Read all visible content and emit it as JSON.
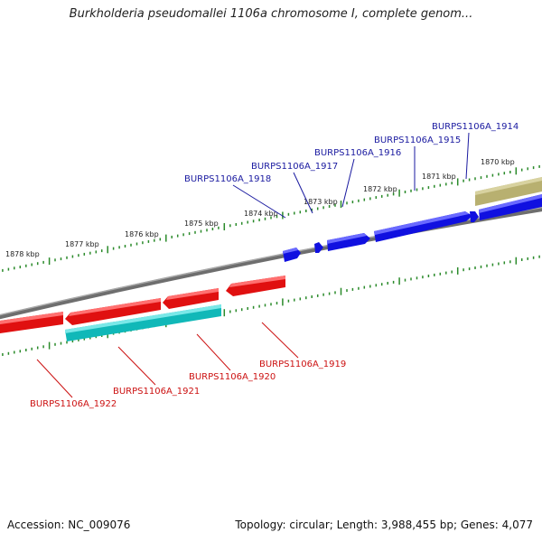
{
  "title": "Burkholderia pseudomallei 1106a chromosome I, complete genom...",
  "accession_text": "Accession: NC_009076",
  "summary_text": "Topology: circular; Length: 3,988,455 bp; Genes: 4,077",
  "colors": {
    "forward_gene": "#1010e0",
    "reverse_gene": "#e01010",
    "rna_gene": "#20c8c8",
    "other_feature": "#b8b070",
    "backbone": "#808080",
    "tick": "#2a8a2a",
    "forward_label": "#1a1aa0",
    "reverse_label": "#cc1111"
  },
  "kbp_labels": [
    "1878 kbp",
    "1877 kbp",
    "1876 kbp",
    "1875 kbp",
    "1874 kbp",
    "1873 kbp",
    "1872 kbp",
    "1871 kbp",
    "1870 kbp"
  ],
  "forward_labels": [
    "BURPS1106A_1914",
    "BURPS1106A_1915",
    "BURPS1106A_1916",
    "BURPS1106A_1917",
    "BURPS1106A_1918"
  ],
  "reverse_labels": [
    "BURPS1106A_1919",
    "BURPS1106A_1920",
    "BURPS1106A_1921",
    "BURPS1106A_1922"
  ]
}
